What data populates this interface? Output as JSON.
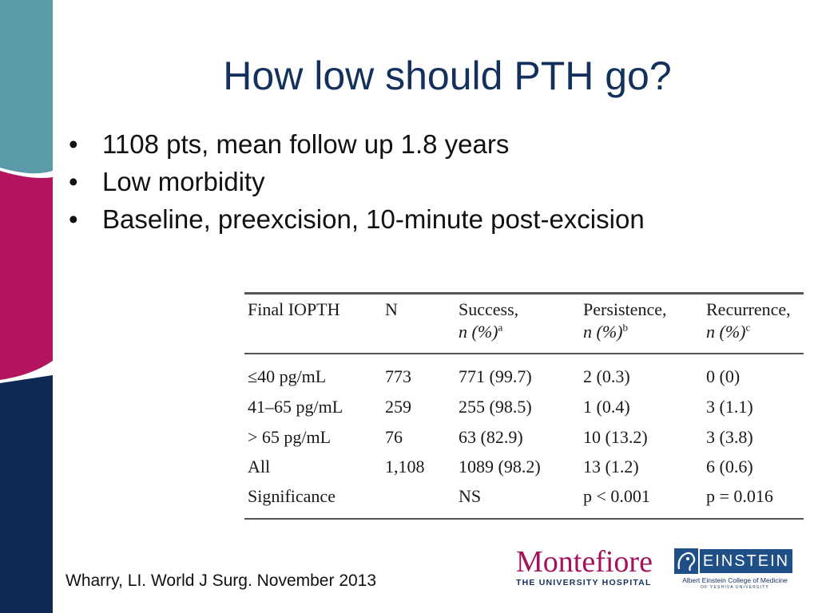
{
  "slide": {
    "title": "How low should PTH go?",
    "bullets": [
      "1108 pts, mean follow up 1.8 years",
      "Low morbidity",
      "Baseline, preexcision, 10-minute post-excision"
    ],
    "bullet_glyph": "•",
    "citation": "Wharry, LI.  World J Surg.  November 2013"
  },
  "table": {
    "headers": [
      {
        "line1": "Final IOPTH",
        "line2": "",
        "sup": ""
      },
      {
        "line1": "N",
        "line2": "",
        "sup": ""
      },
      {
        "line1": "Success,",
        "line2": "n (%)",
        "sup": "a"
      },
      {
        "line1": "Persistence,",
        "line2": "n (%)",
        "sup": "b"
      },
      {
        "line1": "Recurrence,",
        "line2": "n (%)",
        "sup": "c"
      }
    ],
    "rows": [
      [
        "≤40 pg/mL",
        "773",
        "771 (99.7)",
        "2 (0.3)",
        "0 (0)"
      ],
      [
        "41–65 pg/mL",
        "259",
        "255 (98.5)",
        "1 (0.4)",
        "3 (1.1)"
      ],
      [
        "> 65 pg/mL",
        "76",
        "63 (82.9)",
        "10 (13.2)",
        "3 (3.8)"
      ],
      [
        "All",
        "1,108",
        "1089 (98.2)",
        "13 (1.2)",
        "6 (0.6)"
      ],
      [
        "Significance",
        "",
        "NS",
        "p < 0.001",
        "p = 0.016"
      ]
    ]
  },
  "logos": {
    "montefiore_name": "Montefiore",
    "montefiore_sub": "THE UNIVERSITY HOSPITAL",
    "einstein_name": "EINSTEIN",
    "einstein_sub": "Albert Einstein College of Medicine",
    "einstein_sub2": "OF YESHIVA UNIVERSITY"
  },
  "colors": {
    "title": "#13315c",
    "band_teal": "#5b9aa9",
    "band_magenta": "#b5145f",
    "band_navy": "#0e2a52",
    "montefiore": "#a4125c",
    "einstein": "#1e4f86"
  }
}
